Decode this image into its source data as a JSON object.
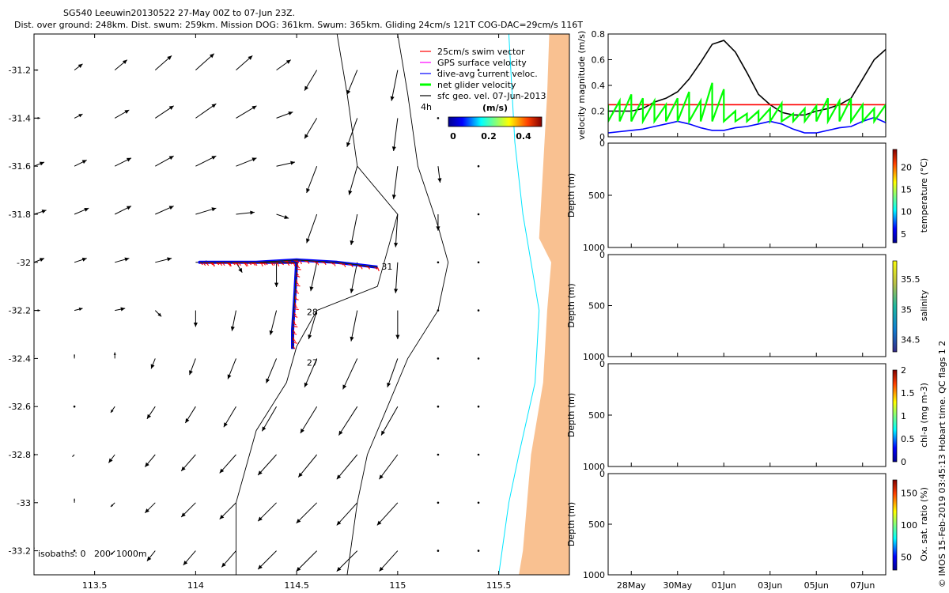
{
  "title": {
    "line1": "SG540 Leeuwin20130522 27-May 00Z to 07-Jun 23Z.",
    "line2": "Dist. over ground: 248km. Dist. swum: 259km. Mission DOG: 361km. Swum: 365km. Gliding 24cm/s 121T COG-DAC=29cm/s 116T"
  },
  "side_caption": "© IMOS 15-Feb-2019 03:45:13 Hobart time. QC flags 1  2",
  "chart_data": [
    {
      "id": "map",
      "type": "scatter",
      "title": "",
      "xlim": [
        113.2,
        115.85
      ],
      "ylim": [
        -33.3,
        -31.05
      ],
      "xticks": [
        113.5,
        114,
        114.5,
        115,
        115.5
      ],
      "xticklabels": [
        "113.5",
        "114",
        "114.5",
        "115",
        "115.5"
      ],
      "yticks": [
        -31.2,
        -31.4,
        -31.6,
        -31.8,
        -32,
        -32.2,
        -32.4,
        -32.6,
        -32.8,
        -33,
        -33.2
      ],
      "yticklabels": [
        "-31.2",
        "-31.4",
        "-31.6",
        "-31.8",
        "-32",
        "-32.2",
        "-32.4",
        "-32.6",
        "-32.8",
        "-33",
        "-33.2"
      ],
      "legend": {
        "position": "top-right",
        "entries": [
          {
            "label": "25cm/s swim vector",
            "color": "#ff0000"
          },
          {
            "label": "GPS surface velocity",
            "color": "#ff00ff"
          },
          {
            "label": "dive-avg current veloc.",
            "color": "#0000ff"
          },
          {
            "label": "net glider velocity",
            "color": "#00ff00"
          },
          {
            "label": "sfc geo. vel. 07-Jun-2013",
            "color": "#000000"
          }
        ]
      },
      "colorbar": {
        "label": "(m/s)",
        "ticks": [
          "0",
          "0.2",
          "0.4"
        ],
        "range": [
          0,
          0.5
        ],
        "time_label": "4h"
      },
      "isobaths_label": "isobaths: 0   200  1000m",
      "track_labels": [
        {
          "text": "31",
          "lon": 114.92,
          "lat": -32.03
        },
        {
          "text": "28",
          "lon": 114.55,
          "lat": -32.22
        },
        {
          "text": "27",
          "lon": 114.55,
          "lat": -32.43
        }
      ],
      "track": [
        {
          "lon": 114.9,
          "lat": -32.02
        },
        {
          "lon": 114.7,
          "lat": -32.0
        },
        {
          "lon": 114.5,
          "lat": -31.99
        },
        {
          "lon": 114.3,
          "lat": -32.0
        },
        {
          "lon": 114.02,
          "lat": -32.0
        },
        {
          "lon": 114.5,
          "lat": -32.0
        },
        {
          "lon": 114.49,
          "lat": -32.15
        },
        {
          "lon": 114.48,
          "lat": -32.28
        },
        {
          "lon": 114.48,
          "lat": -32.36
        }
      ],
      "arrow_grid": {
        "lons": [
          113.2,
          113.4,
          113.6,
          113.8,
          114.0,
          114.2,
          114.4,
          114.6,
          114.8,
          115.0,
          115.2,
          115.4
        ],
        "lats": [
          -31.2,
          -31.4,
          -31.6,
          -31.8,
          -32.0,
          -32.2,
          -32.4,
          -32.6,
          -32.8,
          -33.0,
          -33.2
        ]
      },
      "arrows": [
        [
          [
            0.02,
            0.0
          ],
          [
            0.04,
            0.03
          ],
          [
            0.06,
            0.05
          ],
          [
            0.08,
            0.07
          ],
          [
            0.09,
            0.08
          ],
          [
            0.08,
            0.07
          ],
          [
            0.07,
            0.05
          ],
          [
            -0.06,
            -0.1
          ],
          [
            -0.05,
            -0.12
          ],
          [
            -0.03,
            -0.15
          ],
          [
            0.0,
            0.0
          ],
          [
            0.0,
            0.0
          ]
        ],
        [
          [
            0.03,
            0.0
          ],
          [
            0.04,
            0.02
          ],
          [
            0.07,
            0.04
          ],
          [
            0.09,
            0.06
          ],
          [
            0.1,
            0.07
          ],
          [
            0.1,
            0.06
          ],
          [
            0.08,
            0.03
          ],
          [
            -0.06,
            -0.1
          ],
          [
            -0.05,
            -0.14
          ],
          [
            -0.02,
            -0.16
          ],
          [
            0.0,
            0.0
          ],
          [
            0.0,
            0.0
          ]
        ],
        [
          [
            0.05,
            0.02
          ],
          [
            0.06,
            0.03
          ],
          [
            0.08,
            0.04
          ],
          [
            0.09,
            0.05
          ],
          [
            0.1,
            0.05
          ],
          [
            0.1,
            0.04
          ],
          [
            0.09,
            0.02
          ],
          [
            -0.05,
            -0.13
          ],
          [
            -0.04,
            -0.14
          ],
          [
            -0.02,
            -0.16
          ],
          [
            0.01,
            -0.08
          ],
          [
            0.0,
            0.0
          ]
        ],
        [
          [
            0.06,
            0.02
          ],
          [
            0.07,
            0.03
          ],
          [
            0.08,
            0.04
          ],
          [
            0.09,
            0.04
          ],
          [
            0.1,
            0.03
          ],
          [
            0.09,
            0.01
          ],
          [
            0.06,
            -0.02
          ],
          [
            -0.05,
            -0.14
          ],
          [
            -0.03,
            -0.15
          ],
          [
            -0.01,
            -0.16
          ],
          [
            0.0,
            -0.08
          ],
          [
            0.0,
            0.0
          ]
        ],
        [
          [
            0.05,
            0.02
          ],
          [
            0.06,
            0.02
          ],
          [
            0.07,
            0.02
          ],
          [
            0.08,
            0.02
          ],
          [
            0.07,
            0.0
          ],
          [
            0.03,
            -0.05
          ],
          [
            0.0,
            -0.12
          ],
          [
            -0.03,
            -0.14
          ],
          [
            -0.03,
            -0.15
          ],
          [
            -0.01,
            -0.15
          ],
          [
            0.0,
            0.0
          ],
          [
            0.0,
            0.0
          ]
        ],
        [
          [
            0.03,
            0.0
          ],
          [
            0.04,
            0.01
          ],
          [
            0.05,
            0.01
          ],
          [
            0.03,
            -0.03
          ],
          [
            0.0,
            -0.08
          ],
          [
            -0.02,
            -0.1
          ],
          [
            -0.03,
            -0.12
          ],
          [
            -0.04,
            -0.14
          ],
          [
            -0.03,
            -0.15
          ],
          [
            0.0,
            -0.14
          ],
          [
            0.0,
            0.0
          ],
          [
            0.0,
            0.0
          ]
        ],
        [
          [
            0.0,
            0.02
          ],
          [
            0.0,
            0.02
          ],
          [
            0.0,
            0.03
          ],
          [
            -0.02,
            -0.05
          ],
          [
            -0.03,
            -0.08
          ],
          [
            -0.04,
            -0.1
          ],
          [
            -0.05,
            -0.12
          ],
          [
            -0.06,
            -0.14
          ],
          [
            -0.07,
            -0.15
          ],
          [
            -0.05,
            -0.14
          ],
          [
            0.0,
            0.0
          ],
          [
            0.0,
            0.0
          ]
        ],
        [
          [
            0.0,
            0.02
          ],
          [
            0.0,
            0.0
          ],
          [
            -0.02,
            -0.03
          ],
          [
            -0.04,
            -0.06
          ],
          [
            -0.05,
            -0.08
          ],
          [
            -0.06,
            -0.1
          ],
          [
            -0.07,
            -0.12
          ],
          [
            -0.08,
            -0.13
          ],
          [
            -0.09,
            -0.14
          ],
          [
            -0.08,
            -0.14
          ],
          [
            0.0,
            0.0
          ],
          [
            0.0,
            0.0
          ]
        ],
        [
          [
            0.0,
            0.01
          ],
          [
            -0.01,
            -0.01
          ],
          [
            -0.03,
            -0.04
          ],
          [
            -0.05,
            -0.06
          ],
          [
            -0.07,
            -0.08
          ],
          [
            -0.08,
            -0.09
          ],
          [
            -0.09,
            -0.1
          ],
          [
            -0.09,
            -0.11
          ],
          [
            -0.1,
            -0.12
          ],
          [
            -0.09,
            -0.12
          ],
          [
            0.0,
            0.0
          ],
          [
            0.0,
            0.0
          ]
        ],
        [
          [
            0.0,
            0.02
          ],
          [
            0.0,
            0.02
          ],
          [
            -0.02,
            -0.02
          ],
          [
            -0.05,
            -0.05
          ],
          [
            -0.07,
            -0.07
          ],
          [
            -0.08,
            -0.08
          ],
          [
            -0.09,
            -0.09
          ],
          [
            -0.1,
            -0.1
          ],
          [
            -0.1,
            -0.11
          ],
          [
            -0.1,
            -0.11
          ],
          [
            0.0,
            0.0
          ],
          [
            0.0,
            0.0
          ]
        ],
        [
          [
            0.0,
            0.02
          ],
          [
            0.0,
            0.01
          ],
          [
            -0.02,
            -0.02
          ],
          [
            -0.04,
            -0.05
          ],
          [
            -0.06,
            -0.07
          ],
          [
            -0.07,
            -0.08
          ],
          [
            -0.09,
            -0.09
          ],
          [
            -0.1,
            -0.1
          ],
          [
            -0.1,
            -0.1
          ],
          [
            -0.09,
            -0.1
          ],
          [
            0.0,
            0.0
          ],
          [
            0.0,
            0.0
          ]
        ]
      ],
      "coast": [
        [
          115.75,
          -31.05
        ],
        [
          115.74,
          -31.3
        ],
        [
          115.72,
          -31.6
        ],
        [
          115.7,
          -31.9
        ],
        [
          115.76,
          -32.0
        ],
        [
          115.74,
          -32.2
        ],
        [
          115.72,
          -32.5
        ],
        [
          115.66,
          -32.8
        ],
        [
          115.64,
          -33.0
        ],
        [
          115.62,
          -33.2
        ],
        [
          115.6,
          -33.3
        ]
      ],
      "isobath_0": [
        [
          115.55,
          -31.05
        ],
        [
          115.58,
          -31.5
        ],
        [
          115.62,
          -31.8
        ],
        [
          115.66,
          -32.0
        ],
        [
          115.7,
          -32.2
        ],
        [
          115.68,
          -32.5
        ],
        [
          115.6,
          -32.8
        ],
        [
          115.55,
          -33.0
        ],
        [
          115.5,
          -33.3
        ]
      ],
      "isobath_200": [
        [
          115.0,
          -31.05
        ],
        [
          115.05,
          -31.3
        ],
        [
          115.1,
          -31.6
        ],
        [
          115.2,
          -31.85
        ],
        [
          115.25,
          -32.0
        ],
        [
          115.2,
          -32.2
        ],
        [
          115.05,
          -32.4
        ],
        [
          114.95,
          -32.6
        ],
        [
          114.85,
          -32.8
        ],
        [
          114.8,
          -33.0
        ],
        [
          114.75,
          -33.3
        ]
      ],
      "isobath_1000": [
        [
          114.7,
          -31.05
        ],
        [
          114.75,
          -31.3
        ],
        [
          114.8,
          -31.6
        ],
        [
          115.0,
          -31.8
        ],
        [
          114.9,
          -32.1
        ],
        [
          114.6,
          -32.2
        ],
        [
          114.5,
          -32.35
        ],
        [
          114.45,
          -32.5
        ],
        [
          114.3,
          -32.7
        ],
        [
          114.2,
          -33.0
        ],
        [
          114.2,
          -33.3
        ]
      ]
    },
    {
      "id": "velocity",
      "type": "line",
      "xlabel": "",
      "ylabel": "velocity magnitude (m/s)",
      "xlim": [
        27.0,
        39.0
      ],
      "ylim": [
        0,
        0.8
      ],
      "yticks": [
        "0",
        "0.2",
        "0.4",
        "0.6",
        "0.8"
      ],
      "series": [
        {
          "name": "tide-like speed",
          "color": "#000000",
          "x": [
            27.0,
            27.5,
            28.0,
            28.5,
            29.0,
            29.5,
            30.0,
            30.5,
            31.0,
            31.5,
            32.0,
            32.5,
            33.0,
            33.5,
            34.0,
            34.5,
            35.0,
            35.5,
            36.0,
            36.5,
            37.0,
            37.5,
            38.0,
            38.5,
            39.0
          ],
          "y": [
            0.2,
            0.2,
            0.2,
            0.22,
            0.27,
            0.3,
            0.35,
            0.45,
            0.58,
            0.72,
            0.75,
            0.66,
            0.5,
            0.33,
            0.25,
            0.19,
            0.17,
            0.17,
            0.2,
            0.22,
            0.25,
            0.3,
            0.45,
            0.6,
            0.68
          ]
        },
        {
          "name": "swim speed",
          "color": "#ff0000",
          "x": [
            27.0,
            39.0
          ],
          "y": [
            0.25,
            0.25
          ]
        },
        {
          "name": "dive-avg current",
          "color": "#0000ff",
          "x": [
            27.0,
            27.5,
            28.0,
            28.5,
            29.0,
            29.5,
            30.0,
            30.5,
            31.0,
            31.5,
            32.0,
            32.5,
            33.0,
            33.5,
            34.0,
            34.5,
            35.0,
            35.5,
            36.0,
            36.5,
            37.0,
            37.5,
            38.0,
            38.5,
            39.0
          ],
          "y": [
            0.03,
            0.04,
            0.05,
            0.06,
            0.08,
            0.1,
            0.12,
            0.1,
            0.07,
            0.05,
            0.05,
            0.07,
            0.08,
            0.1,
            0.12,
            0.1,
            0.06,
            0.03,
            0.03,
            0.05,
            0.07,
            0.08,
            0.12,
            0.15,
            0.11
          ]
        },
        {
          "name": "net glider velocity",
          "color": "#00ff00",
          "x": [
            27.0,
            27.5,
            28.0,
            28.5,
            29.0,
            29.5,
            30.0,
            30.5,
            31.0,
            31.5,
            32.0,
            32.5,
            33.0,
            33.5,
            34.0,
            34.5,
            35.0,
            35.5,
            36.0,
            36.5,
            37.0,
            37.5,
            38.0,
            38.5,
            39.0
          ],
          "y": [
            0.25,
            0.28,
            0.33,
            0.3,
            0.28,
            0.25,
            0.3,
            0.35,
            0.28,
            0.42,
            0.37,
            0.2,
            0.18,
            0.2,
            0.22,
            0.26,
            0.18,
            0.22,
            0.24,
            0.3,
            0.28,
            0.3,
            0.25,
            0.22,
            0.25
          ]
        }
      ]
    },
    {
      "id": "temperature",
      "type": "heatmap",
      "ylabel": "Depth (m)",
      "yticks": [
        "0",
        "500",
        "1000"
      ],
      "colorbar_label": "temperature (°C)",
      "colorbar_ticks": [
        "5",
        "10",
        "15",
        "20"
      ],
      "crange": [
        3,
        24
      ]
    },
    {
      "id": "salinity",
      "type": "heatmap",
      "ylabel": "Depth (m)",
      "yticks": [
        "0",
        "500",
        "1000"
      ],
      "colorbar_label": "salinity",
      "colorbar_ticks": [
        "34.5",
        "35",
        "35.5"
      ],
      "crange": [
        34.3,
        35.8
      ]
    },
    {
      "id": "chla",
      "type": "heatmap",
      "ylabel": "Depth (m)",
      "yticks": [
        "0",
        "500",
        "1000"
      ],
      "colorbar_label": "chl-a (mg m-3)",
      "colorbar_ticks": [
        "0",
        "0.5",
        "1",
        "1.5",
        "2"
      ],
      "crange": [
        0,
        2
      ]
    },
    {
      "id": "oxsat",
      "type": "heatmap",
      "ylabel": "Depth (m)",
      "yticks": [
        "0",
        "500",
        "1000"
      ],
      "colorbar_label": "Ox. sat. ratio (%)",
      "colorbar_ticks": [
        "50",
        "100",
        "150"
      ],
      "crange": [
        30,
        170
      ]
    }
  ],
  "time_axis": {
    "labels": [
      "28May",
      "30May",
      "01Jun",
      "03Jun",
      "05Jun",
      "07Jun"
    ],
    "days": [
      28,
      30,
      32,
      34,
      36,
      38
    ]
  },
  "colors": {
    "land": "#f9c191",
    "isobath_0": "#00e5ff",
    "track_red": "#ff0000",
    "track_blue": "#0000ff"
  }
}
